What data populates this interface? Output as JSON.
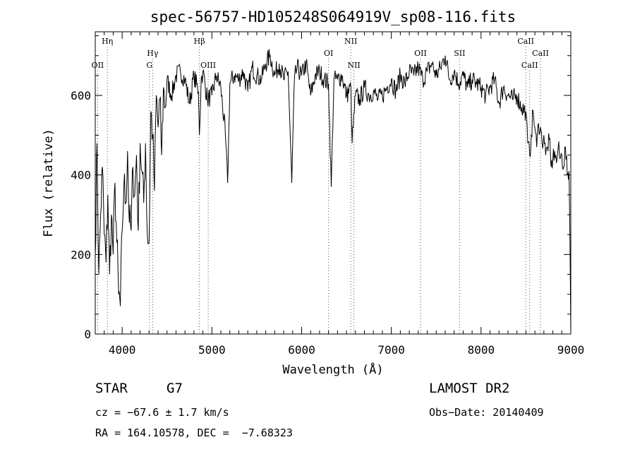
{
  "chart_data": {
    "type": "line",
    "title": "spec-56757-HD105248S064919V_sp08-116.fits",
    "xlabel": "Wavelength (Å)",
    "ylabel": "Flux (relative)",
    "xlim": [
      3700,
      9000
    ],
    "ylim": [
      0,
      760
    ],
    "x_ticks": [
      {
        "value": 4000,
        "label": "4000"
      },
      {
        "value": 5000,
        "label": "5000"
      },
      {
        "value": 6000,
        "label": "6000"
      },
      {
        "value": 7000,
        "label": "7000"
      },
      {
        "value": 8000,
        "label": "8000"
      },
      {
        "value": 9000,
        "label": "9000"
      }
    ],
    "y_ticks": [
      {
        "value": 0,
        "label": "0"
      },
      {
        "value": 200,
        "label": "200"
      },
      {
        "value": 400,
        "label": "400"
      },
      {
        "value": 600,
        "label": "600"
      }
    ],
    "grid": false,
    "series": [
      {
        "x": [
          3700,
          3720,
          3740,
          3760,
          3780,
          3800,
          3820,
          3840,
          3860,
          3880,
          3900,
          3920,
          3940,
          3960,
          3980,
          4000,
          4020,
          4040,
          4060,
          4080,
          4100,
          4120,
          4140,
          4160,
          4180,
          4200,
          4220,
          4240,
          4260,
          4280,
          4300,
          4320,
          4340,
          4360,
          4380,
          4400,
          4420,
          4440,
          4460,
          4480,
          4500,
          4550,
          4600,
          4650,
          4700,
          4750,
          4800,
          4850,
          4861,
          4880,
          4900,
          4950,
          5000,
          5050,
          5100,
          5150,
          5175,
          5200,
          5250,
          5300,
          5350,
          5400,
          5450,
          5500,
          5550,
          5600,
          5650,
          5700,
          5750,
          5800,
          5850,
          5890,
          5920,
          5950,
          6000,
          6050,
          6100,
          6150,
          6200,
          6250,
          6300,
          6330,
          6360,
          6400,
          6450,
          6500,
          6550,
          6563,
          6600,
          6650,
          6700,
          6750,
          6800,
          6850,
          6900,
          6950,
          7000,
          7050,
          7100,
          7150,
          7200,
          7250,
          7300,
          7350,
          7400,
          7450,
          7500,
          7550,
          7600,
          7650,
          7700,
          7750,
          7800,
          7850,
          7900,
          7950,
          8000,
          8050,
          8100,
          8150,
          8200,
          8250,
          8300,
          8350,
          8400,
          8450,
          8498,
          8520,
          8542,
          8560,
          8580,
          8600,
          8620,
          8640,
          8662,
          8680,
          8700,
          8720,
          8740,
          8760,
          8780,
          8800,
          8820,
          8840,
          8860,
          8880,
          8900,
          8920,
          8940,
          8960,
          8980,
          8990,
          9000
        ],
        "y": [
          200,
          480,
          150,
          300,
          420,
          250,
          180,
          350,
          150,
          300,
          200,
          380,
          230,
          100,
          70,
          260,
          380,
          330,
          460,
          280,
          260,
          420,
          350,
          450,
          260,
          480,
          410,
          330,
          480,
          250,
          230,
          560,
          500,
          360,
          600,
          520,
          590,
          450,
          620,
          570,
          640,
          600,
          650,
          660,
          640,
          580,
          650,
          610,
          500,
          640,
          660,
          590,
          600,
          650,
          620,
          500,
          380,
          630,
          650,
          640,
          660,
          610,
          670,
          650,
          640,
          680,
          700,
          650,
          680,
          640,
          660,
          380,
          640,
          670,
          650,
          680,
          600,
          650,
          660,
          640,
          630,
          370,
          640,
          640,
          650,
          600,
          620,
          480,
          600,
          590,
          620,
          600,
          610,
          590,
          600,
          620,
          640,
          610,
          650,
          630,
          660,
          650,
          670,
          640,
          660,
          680,
          650,
          670,
          700,
          640,
          660,
          630,
          650,
          620,
          640,
          630,
          620,
          600,
          620,
          640,
          580,
          620,
          600,
          590,
          600,
          570,
          560,
          480,
          450,
          500,
          560,
          520,
          470,
          530,
          520,
          480,
          500,
          450,
          470,
          490,
          420,
          440,
          460,
          430,
          470,
          440,
          450,
          420,
          470,
          400,
          410,
          260,
          0
        ]
      }
    ],
    "line_markers": [
      {
        "label": "OII",
        "wavelength": 3727,
        "row": "low"
      },
      {
        "label": "Hη",
        "wavelength": 3835,
        "row": "top"
      },
      {
        "label": "G",
        "wavelength": 4304,
        "row": "low"
      },
      {
        "label": "Hγ",
        "wavelength": 4340,
        "row": "mid"
      },
      {
        "label": "Hβ",
        "wavelength": 4861,
        "row": "top"
      },
      {
        "label": "OIII",
        "wavelength": 4959,
        "row": "low"
      },
      {
        "label": "OI",
        "wavelength": 6300,
        "row": "mid"
      },
      {
        "label": "NII",
        "wavelength": 6548,
        "row": "top"
      },
      {
        "label": "NII",
        "wavelength": 6583,
        "row": "low"
      },
      {
        "label": "OII",
        "wavelength": 7325,
        "row": "mid"
      },
      {
        "label": "SII",
        "wavelength": 7760,
        "row": "mid"
      },
      {
        "label": "CaII",
        "wavelength": 8498,
        "row": "top"
      },
      {
        "label": "CaII",
        "wavelength": 8542,
        "row": "low"
      },
      {
        "label": "CaII",
        "wavelength": 8662,
        "row": "mid"
      }
    ]
  },
  "info": {
    "object_class": "STAR",
    "subclass": "G7",
    "survey": "LAMOST DR2",
    "redshift": "cz = −67.6 ± 1.7 km/s",
    "obs_date": "Obs−Date: 20140409",
    "coords": "RA = 164.10578, DEC =  −7.68323"
  }
}
